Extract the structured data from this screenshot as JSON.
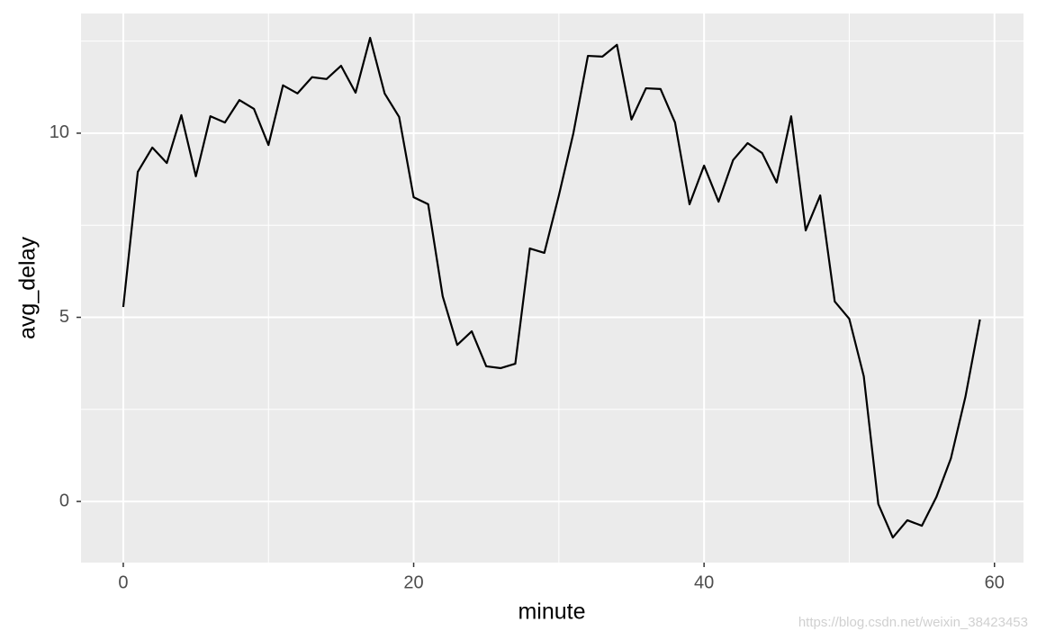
{
  "chart_data": {
    "type": "line",
    "x_label": "minute",
    "y_label": "avg_delay",
    "x": [
      0,
      1,
      2,
      3,
      4,
      5,
      6,
      7,
      8,
      9,
      10,
      11,
      12,
      13,
      14,
      15,
      16,
      17,
      18,
      19,
      20,
      21,
      22,
      23,
      24,
      25,
      26,
      27,
      28,
      29,
      30,
      31,
      32,
      33,
      34,
      35,
      36,
      37,
      38,
      39,
      40,
      41,
      42,
      43,
      44,
      45,
      46,
      47,
      48,
      49,
      50,
      51,
      52,
      53,
      54,
      55,
      56,
      57,
      58,
      59
    ],
    "series": [
      {
        "name": "avg_delay",
        "color": "#000000",
        "values": [
          5.28,
          8.95,
          9.61,
          9.19,
          10.49,
          8.83,
          10.46,
          10.29,
          10.9,
          10.66,
          9.68,
          11.3,
          11.08,
          11.52,
          11.47,
          11.83,
          11.1,
          12.59,
          11.08,
          10.44,
          8.26,
          8.07,
          5.57,
          4.25,
          4.62,
          3.67,
          3.62,
          3.74,
          6.87,
          6.75,
          8.31,
          10.0,
          12.1,
          12.08,
          12.4,
          10.37,
          11.22,
          11.2,
          10.29,
          8.07,
          9.12,
          8.14,
          9.27,
          9.73,
          9.46,
          8.66,
          10.46,
          7.36,
          8.31,
          5.43,
          4.96,
          3.4,
          -0.07,
          -0.98,
          -0.51,
          -0.66,
          0.12,
          1.17,
          2.84,
          4.94
        ]
      }
    ],
    "xlim": [
      -2.91,
      62.0
    ],
    "ylim": [
      -1.66,
      13.25
    ],
    "xticks": [
      0,
      20,
      40,
      60
    ],
    "yticks": [
      0,
      5,
      10
    ],
    "x_minor_ticks": [
      10,
      30,
      50
    ],
    "y_minor_ticks": [
      2.5,
      7.5,
      12.5
    ],
    "grid": true,
    "watermark": "https://blog.csdn.net/weixin_38423453"
  }
}
